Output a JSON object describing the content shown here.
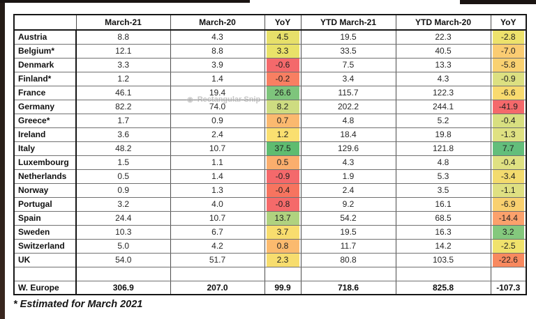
{
  "window": {
    "watermark_label": "Rectangular Snip",
    "edge_color": "#241b16"
  },
  "footnote": "* Estimated for March 2021",
  "table": {
    "columns": [
      "",
      "March-21",
      "March-20",
      "YoY",
      "YTD March-21",
      "YTD March-20",
      "YoY"
    ],
    "rows": [
      {
        "country": "Austria",
        "mar21": "8.8",
        "mar20": "4.3",
        "yoy": "4.5",
        "yoy_color": "#E7E06A",
        "ytd21": "19.5",
        "ytd20": "22.3",
        "ytd_yoy": "-2.8",
        "ytd_yoy_color": "#EDE26C"
      },
      {
        "country": "Belgium*",
        "mar21": "12.1",
        "mar20": "8.8",
        "yoy": "3.3",
        "yoy_color": "#E9E269",
        "ytd21": "33.5",
        "ytd20": "40.5",
        "ytd_yoy": "-7.0",
        "ytd_yoy_color": "#FACC72"
      },
      {
        "country": "Denmark",
        "mar21": "3.3",
        "mar20": "3.9",
        "yoy": "-0.6",
        "yoy_color": "#F4696B",
        "ytd21": "7.5",
        "ytd20": "13.3",
        "ytd_yoy": "-5.8",
        "ytd_yoy_color": "#F9D171"
      },
      {
        "country": "Finland*",
        "mar21": "1.2",
        "mar20": "1.4",
        "yoy": "-0.2",
        "yoy_color": "#F87F62",
        "ytd21": "3.4",
        "ytd20": "4.3",
        "ytd_yoy": "-0.9",
        "ytd_yoy_color": "#DCE081"
      },
      {
        "country": "France",
        "mar21": "46.1",
        "mar20": "19.4",
        "yoy": "26.6",
        "yoy_color": "#7EC57C",
        "ytd21": "115.7",
        "ytd20": "122.3",
        "ytd_yoy": "-6.6",
        "ytd_yoy_color": "#F8DA6F"
      },
      {
        "country": "Germany",
        "mar21": "82.2",
        "mar20": "74.0",
        "yoy": "8.2",
        "yoy_color": "#CEDC81",
        "ytd21": "202.2",
        "ytd20": "244.1",
        "ytd_yoy": "-41.9",
        "ytd_yoy_color": "#F4696B"
      },
      {
        "country": "Greece*",
        "mar21": "1.7",
        "mar20": "0.9",
        "yoy": "0.7",
        "yoy_color": "#FBB96F",
        "ytd21": "4.8",
        "ytd20": "5.2",
        "ytd_yoy": "-0.4",
        "ytd_yoy_color": "#D8DF80"
      },
      {
        "country": "Ireland",
        "mar21": "3.6",
        "mar20": "2.4",
        "yoy": "1.2",
        "yoy_color": "#FADF70",
        "ytd21": "18.4",
        "ytd20": "19.8",
        "ytd_yoy": "-1.3",
        "ytd_yoy_color": "#DFE182"
      },
      {
        "country": "Italy",
        "mar21": "48.2",
        "mar20": "10.7",
        "yoy": "37.5",
        "yoy_color": "#5FBC70",
        "ytd21": "129.6",
        "ytd20": "121.8",
        "ytd_yoy": "7.7",
        "ytd_yoy_color": "#63BE7B"
      },
      {
        "country": "Luxembourg",
        "mar21": "1.5",
        "mar20": "1.1",
        "yoy": "0.5",
        "yoy_color": "#FBAE6D",
        "ytd21": "4.3",
        "ytd20": "4.8",
        "ytd_yoy": "-0.4",
        "ytd_yoy_color": "#DFE182"
      },
      {
        "country": "Netherlands",
        "mar21": "0.5",
        "mar20": "1.4",
        "yoy": "-0.9",
        "yoy_color": "#F4696B",
        "ytd21": "1.9",
        "ytd20": "5.3",
        "ytd_yoy": "-3.4",
        "ytd_yoy_color": "#F3DB6E"
      },
      {
        "country": "Norway",
        "mar21": "0.9",
        "mar20": "1.3",
        "yoy": "-0.4",
        "yoy_color": "#F7745F",
        "ytd21": "2.4",
        "ytd20": "3.5",
        "ytd_yoy": "-1.1",
        "ytd_yoy_color": "#DFE082"
      },
      {
        "country": "Portugal",
        "mar21": "3.2",
        "mar20": "4.0",
        "yoy": "-0.8",
        "yoy_color": "#F56A6A",
        "ytd21": "9.2",
        "ytd20": "16.1",
        "ytd_yoy": "-6.9",
        "ytd_yoy_color": "#F9D06F"
      },
      {
        "country": "Spain",
        "mar21": "24.4",
        "mar20": "10.7",
        "yoy": "13.7",
        "yoy_color": "#B0D27F",
        "ytd21": "54.2",
        "ytd20": "68.5",
        "ytd_yoy": "-14.4",
        "ytd_yoy_color": "#FBA16C"
      },
      {
        "country": "Sweden",
        "mar21": "10.3",
        "mar20": "6.7",
        "yoy": "3.7",
        "yoy_color": "#F8DD6E",
        "ytd21": "19.5",
        "ytd20": "16.3",
        "ytd_yoy": "3.2",
        "ytd_yoy_color": "#84C87D"
      },
      {
        "country": "Switzerland",
        "mar21": "5.0",
        "mar20": "4.2",
        "yoy": "0.8",
        "yoy_color": "#FBBA6E",
        "ytd21": "11.7",
        "ytd20": "14.2",
        "ytd_yoy": "-2.5",
        "ytd_yoy_color": "#F0E26C"
      },
      {
        "country": "UK",
        "mar21": "54.0",
        "mar20": "51.7",
        "yoy": "2.3",
        "yoy_color": "#F7DD6E",
        "ytd21": "80.8",
        "ytd20": "103.5",
        "ytd_yoy": "-22.6",
        "ytd_yoy_color": "#F8895F"
      }
    ],
    "total": {
      "country": "W. Europe",
      "mar21": "306.9",
      "mar20": "207.0",
      "yoy": "99.9",
      "ytd21": "718.6",
      "ytd20": "825.8",
      "ytd_yoy": "-107.3"
    }
  }
}
